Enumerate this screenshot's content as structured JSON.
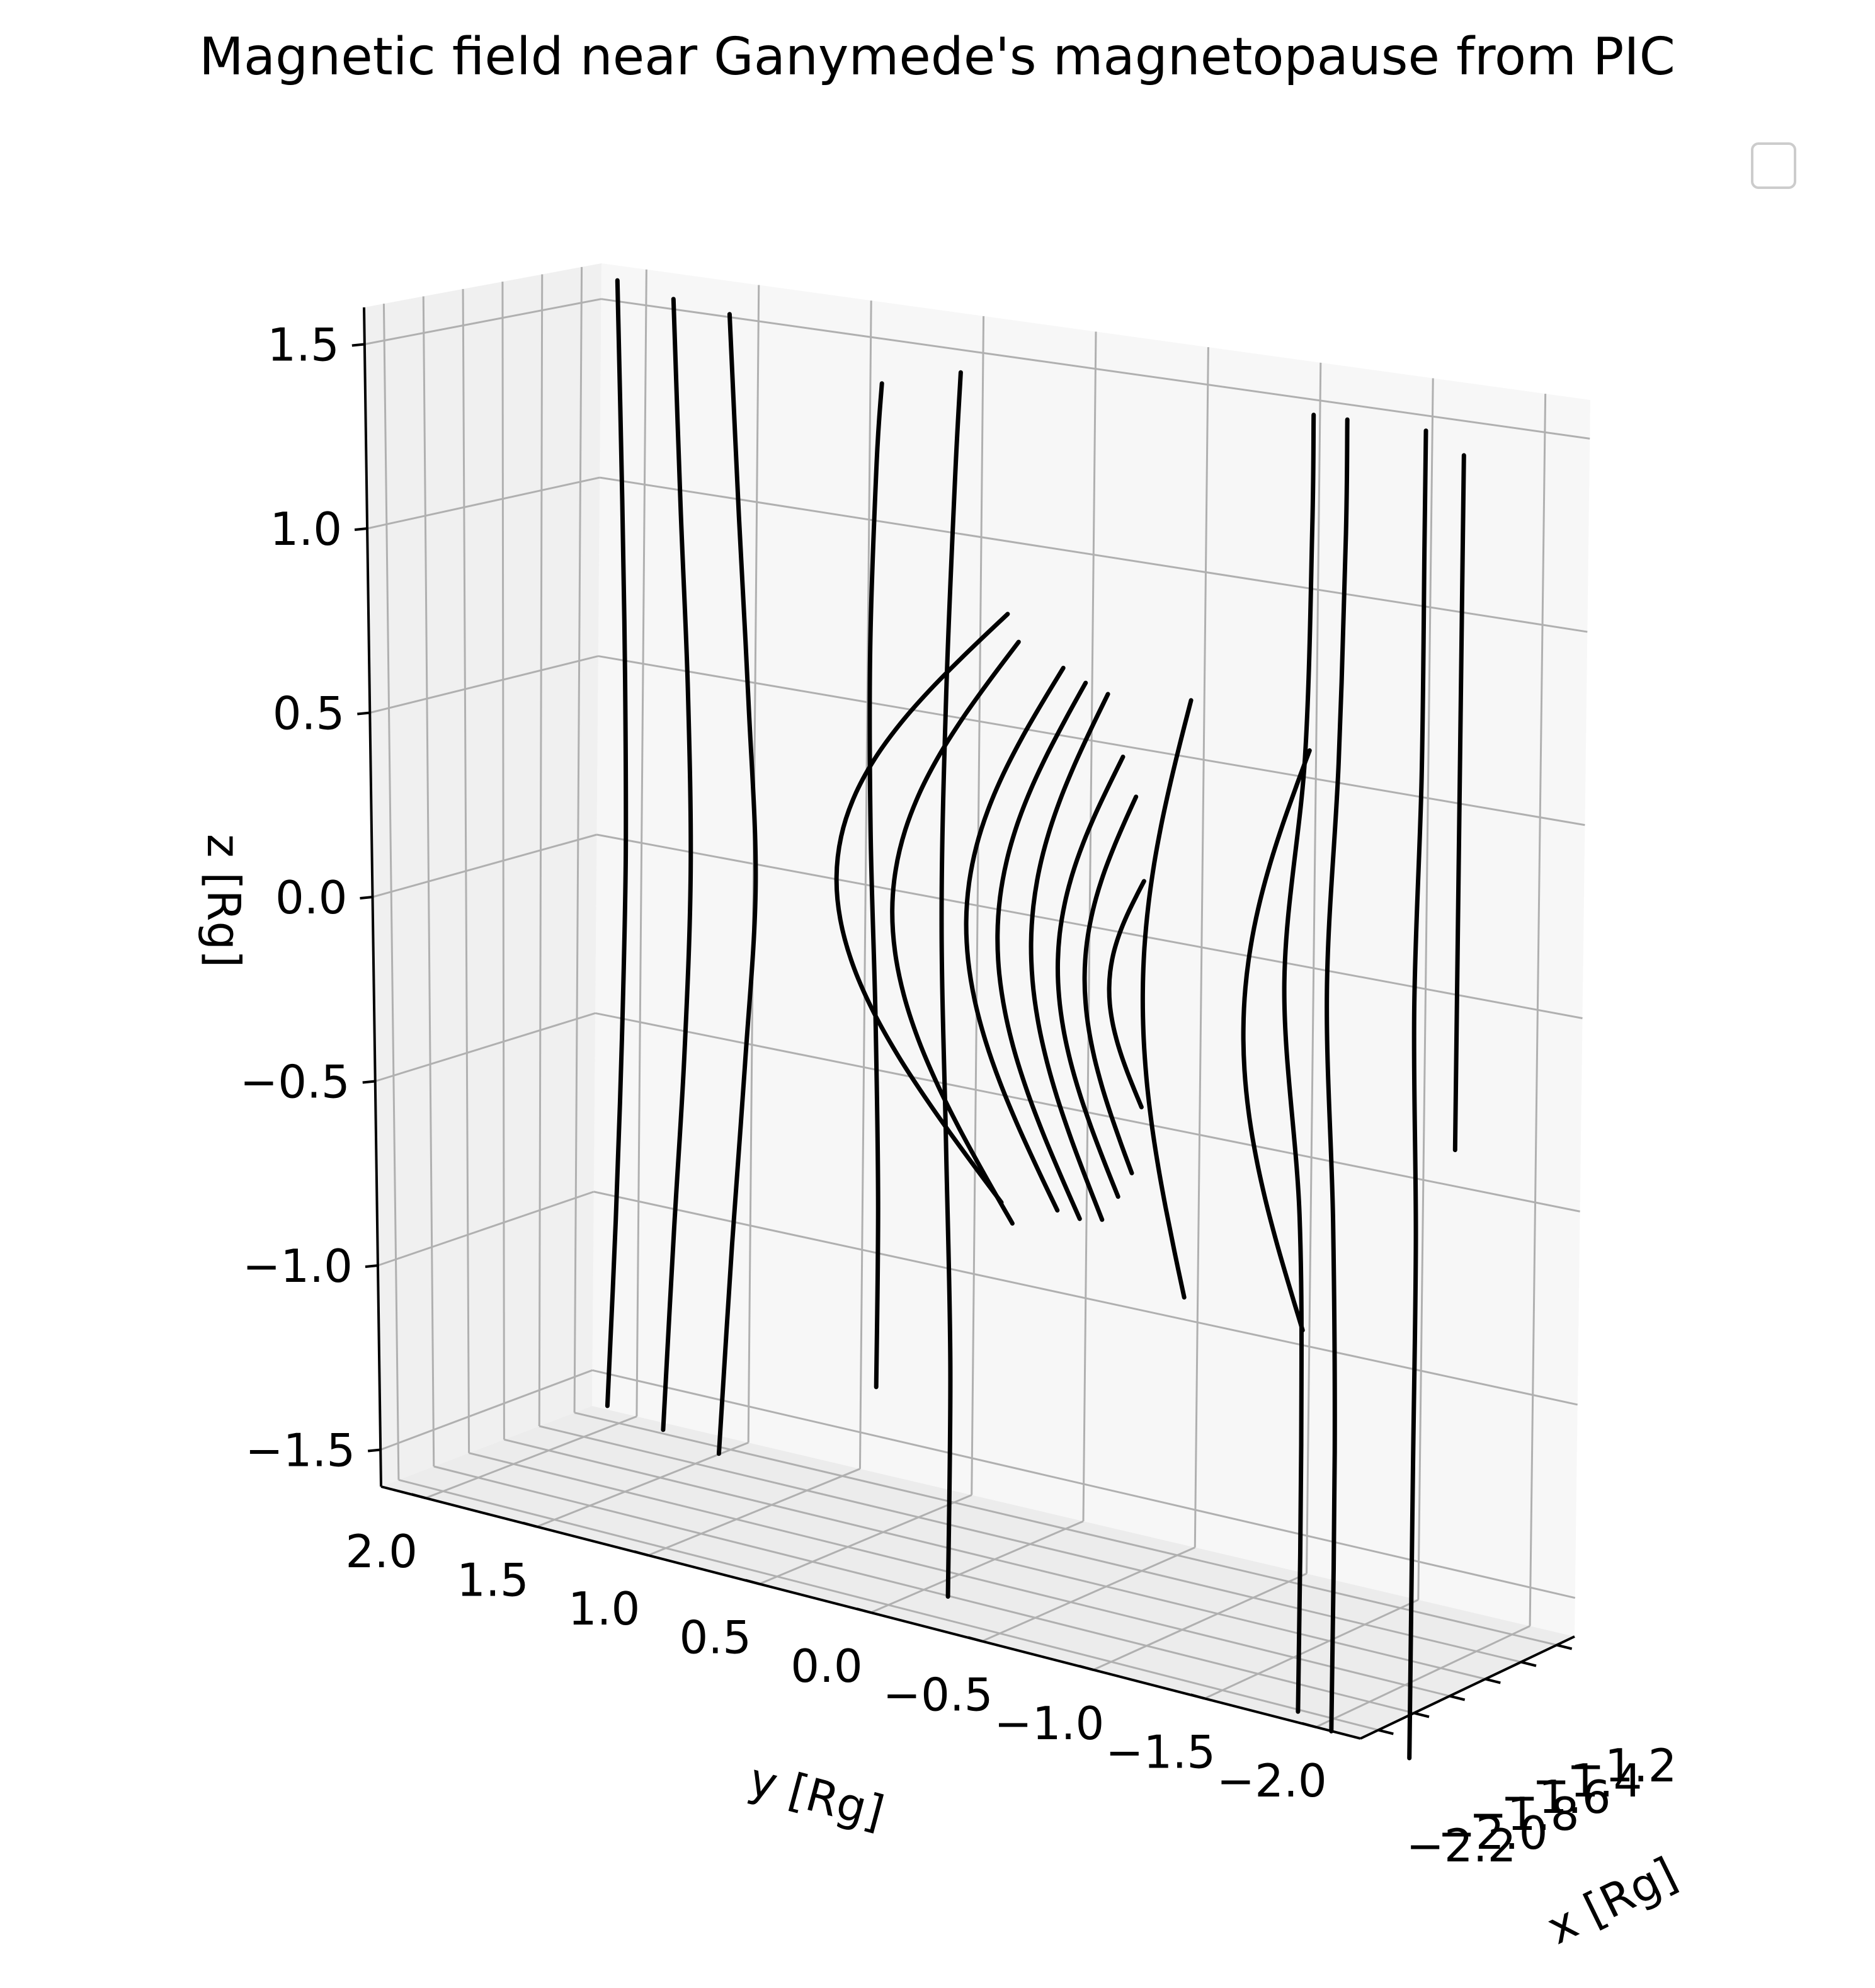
{
  "chart_data": {
    "type": "line",
    "projection": "3d",
    "title": "Magnetic field near Ganymede's magnetopause from PIC",
    "xlabel": "x [Rg]",
    "ylabel": "y [Rg]",
    "zlabel": "z [Rg]",
    "x_ticks": [
      "−2.2",
      "−2.0",
      "−1.8",
      "−1.6",
      "−1.4",
      "−1.2"
    ],
    "y_ticks": [
      "2.0",
      "1.5",
      "1.0",
      "0.5",
      "0.0",
      "−0.5",
      "−1.0",
      "−1.5",
      "−2.0"
    ],
    "z_ticks": [
      "1.5",
      "1.0",
      "0.5",
      "0.0",
      "−0.5",
      "−1.0",
      "−1.5"
    ],
    "ylim": [
      2.2,
      -2.2
    ],
    "zlim": [
      -1.6,
      1.6
    ],
    "grid": true,
    "legend": {
      "placement": "top-right",
      "entries": []
    },
    "line_color": "#000000",
    "series_open_field_lines": [
      {
        "y": 1.65,
        "z": [
          -1.52,
          -1.0,
          -0.5,
          0.0,
          0.5,
          1.0,
          1.6
        ],
        "y_offset": [
          0.0,
          -0.03,
          -0.05,
          -0.06,
          -0.05,
          -0.03,
          0.0
        ]
      },
      {
        "y": 1.4,
        "z": [
          -1.55,
          -1.0,
          -0.5,
          0.0,
          0.5,
          1.0,
          1.57
        ],
        "y_offset": [
          0.0,
          -0.04,
          -0.08,
          -0.1,
          -0.08,
          -0.04,
          0.0
        ]
      },
      {
        "y": 1.15,
        "z": [
          -1.58,
          -1.0,
          -0.5,
          0.0,
          0.5,
          1.0,
          1.55
        ],
        "y_offset": [
          0.0,
          -0.05,
          -0.1,
          -0.14,
          -0.1,
          -0.05,
          0.0
        ]
      },
      {
        "y": 0.45,
        "z": [
          -1.3,
          -0.8,
          -0.3,
          0.2,
          0.7,
          1.2,
          1.42
        ],
        "y_offset": [
          0.0,
          0.0,
          0.02,
          0.05,
          0.06,
          0.04,
          0.02
        ]
      },
      {
        "y": 0.12,
        "z": [
          -1.82,
          -1.2,
          -0.6,
          0.0,
          0.6,
          1.2,
          1.48
        ],
        "y_offset": [
          0.0,
          0.0,
          0.03,
          0.06,
          0.05,
          0.02,
          0.0
        ]
      },
      {
        "y": -1.45,
        "z": [
          -1.9,
          -1.2,
          -0.6,
          0.0,
          0.6,
          1.2,
          1.5
        ],
        "y_offset": [
          0.0,
          0.0,
          0.02,
          0.1,
          0.02,
          0.0,
          0.0
        ]
      },
      {
        "y": -1.6,
        "z": [
          -1.93,
          -1.2,
          -0.6,
          0.0,
          0.6,
          1.2,
          1.5
        ],
        "y_offset": [
          0.0,
          0.0,
          0.02,
          0.06,
          0.02,
          0.0,
          0.0
        ]
      },
      {
        "y": -1.95,
        "z": [
          -1.95,
          -1.2,
          -0.6,
          0.0,
          0.6,
          1.2,
          1.5
        ],
        "y_offset": [
          0.0,
          0.0,
          0.0,
          0.02,
          0.0,
          0.0,
          0.0
        ]
      },
      {
        "y": -2.12,
        "z": [
          -0.35,
          0.0,
          0.5,
          1.0,
          1.45
        ],
        "y_offset": [
          0.0,
          0.0,
          0.0,
          0.0,
          0.0
        ]
      }
    ],
    "series_closed_loops": [
      {
        "y_start": -0.1,
        "y_extent": 0.75,
        "z_top": 0.85,
        "z_bottom": -0.73
      },
      {
        "y_start": -0.15,
        "y_extent": 0.55,
        "z_top": 0.78,
        "z_bottom": -0.78
      },
      {
        "y_start": -0.35,
        "y_extent": 0.42,
        "z_top": 0.73,
        "z_bottom": -0.72
      },
      {
        "y_start": -0.45,
        "y_extent": 0.38,
        "z_top": 0.7,
        "z_bottom": -0.73
      },
      {
        "y_start": -0.55,
        "y_extent": 0.33,
        "z_top": 0.68,
        "z_bottom": -0.72
      },
      {
        "y_start": -0.62,
        "y_extent": 0.28,
        "z_top": 0.52,
        "z_bottom": -0.65
      },
      {
        "y_start": -0.68,
        "y_extent": 0.22,
        "z_top": 0.42,
        "z_bottom": -0.58
      },
      {
        "y_start": -0.72,
        "y_extent": 0.15,
        "z_top": 0.2,
        "z_bottom": -0.4
      },
      {
        "y_start": -0.92,
        "y_extent": 0.2,
        "z_top": 0.7,
        "z_bottom": -0.88
      },
      {
        "y_start": -1.45,
        "y_extent": 0.28,
        "z_top": 0.62,
        "z_bottom": -0.9
      }
    ]
  }
}
